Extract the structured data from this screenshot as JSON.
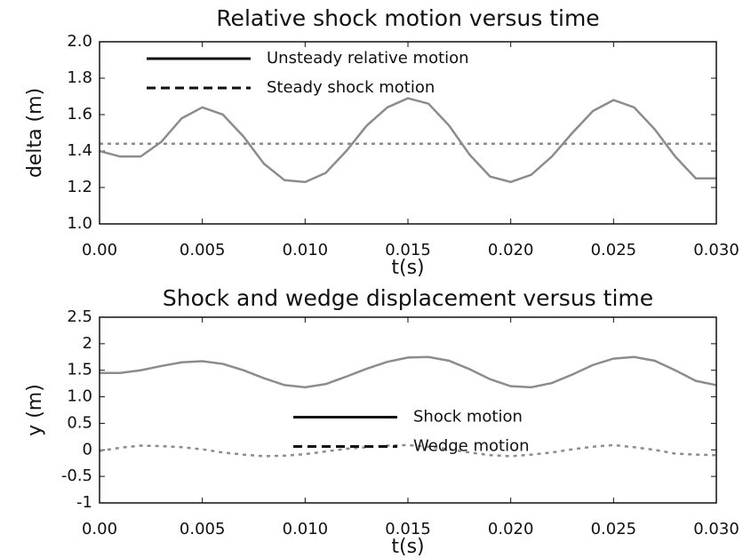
{
  "chart_data": [
    {
      "type": "line",
      "title": "Relative shock motion versus time",
      "x_label": "t(s)",
      "y_label": "delta (m)",
      "x": [
        0,
        0.001,
        0.002,
        0.003,
        0.004,
        0.005,
        0.006,
        0.007,
        0.008,
        0.009,
        0.01,
        0.011,
        0.012,
        0.013,
        0.014,
        0.015,
        0.016,
        0.017,
        0.018,
        0.019,
        0.02,
        0.021,
        0.022,
        0.023,
        0.024,
        0.025,
        0.026,
        0.027,
        0.028,
        0.029,
        0.03
      ],
      "series": [
        {
          "name": "Unsteady relative motion",
          "color": "#8c8c8c",
          "dash": false,
          "values": [
            1.4,
            1.37,
            1.37,
            1.45,
            1.58,
            1.64,
            1.6,
            1.48,
            1.33,
            1.24,
            1.23,
            1.28,
            1.4,
            1.54,
            1.64,
            1.69,
            1.66,
            1.54,
            1.38,
            1.26,
            1.23,
            1.27,
            1.37,
            1.5,
            1.62,
            1.68,
            1.64,
            1.52,
            1.37,
            1.25,
            1.25
          ]
        },
        {
          "name": "Steady shock motion",
          "color": "#8c8c8c",
          "dash": true,
          "values": [
            1.44,
            1.44,
            1.44,
            1.44,
            1.44,
            1.44,
            1.44,
            1.44,
            1.44,
            1.44,
            1.44,
            1.44,
            1.44,
            1.44,
            1.44,
            1.44,
            1.44,
            1.44,
            1.44,
            1.44,
            1.44,
            1.44,
            1.44,
            1.44,
            1.44,
            1.44,
            1.44,
            1.44,
            1.44,
            1.44,
            1.44
          ]
        }
      ],
      "xlim": [
        0,
        0.03
      ],
      "xticks": [
        {
          "value": 0,
          "label": "0.00"
        },
        0.005,
        {
          "value": 0.01,
          "label": "0.010"
        },
        0.015,
        {
          "value": 0.02,
          "label": "0.020"
        },
        0.025,
        {
          "value": 0.03,
          "label": "0.030"
        }
      ],
      "ylim": [
        1.0,
        2.0
      ],
      "yticks": [
        {
          "value": 1.0,
          "label": "1.0"
        },
        1.2,
        1.4,
        1.6,
        1.8,
        {
          "value": 2.0,
          "label": "2.0"
        }
      ],
      "legend": "upper left"
    },
    {
      "type": "line",
      "title": "Shock and wedge displacement versus time",
      "x_label": "t(s)",
      "y_label": "y (m)",
      "x": [
        0,
        0.001,
        0.002,
        0.003,
        0.004,
        0.005,
        0.006,
        0.007,
        0.008,
        0.009,
        0.01,
        0.011,
        0.012,
        0.013,
        0.014,
        0.015,
        0.016,
        0.017,
        0.018,
        0.019,
        0.02,
        0.021,
        0.022,
        0.023,
        0.024,
        0.025,
        0.026,
        0.027,
        0.028,
        0.029,
        0.03
      ],
      "series": [
        {
          "name": "Shock motion",
          "color": "#8c8c8c",
          "dash": false,
          "values": [
            1.45,
            1.45,
            1.5,
            1.58,
            1.65,
            1.67,
            1.62,
            1.5,
            1.35,
            1.22,
            1.18,
            1.24,
            1.38,
            1.53,
            1.66,
            1.74,
            1.75,
            1.68,
            1.52,
            1.33,
            1.2,
            1.18,
            1.26,
            1.42,
            1.6,
            1.72,
            1.75,
            1.68,
            1.5,
            1.3,
            1.22
          ]
        },
        {
          "name": "Wedge motion",
          "color": "#8c8c8c",
          "dash": true,
          "values": [
            -0.02,
            0.04,
            0.08,
            0.07,
            0.05,
            0.01,
            -0.05,
            -0.09,
            -0.12,
            -0.11,
            -0.08,
            -0.03,
            0.02,
            0.05,
            0.08,
            0.09,
            0.06,
            0.01,
            -0.05,
            -0.1,
            -0.12,
            -0.09,
            -0.05,
            0.01,
            0.06,
            0.09,
            0.05,
            0.0,
            -0.07,
            -0.09,
            -0.1
          ]
        }
      ],
      "xlim": [
        0,
        0.03
      ],
      "xticks": [
        {
          "value": 0,
          "label": "0.00"
        },
        0.005,
        {
          "value": 0.01,
          "label": "0.010"
        },
        0.015,
        {
          "value": 0.02,
          "label": "0.020"
        },
        0.025,
        {
          "value": 0.03,
          "label": "0.030"
        }
      ],
      "ylim": [
        -1,
        2.5
      ],
      "yticks": [
        -1,
        -0.5,
        0,
        {
          "value": 0.5,
          "label": "0.5"
        },
        {
          "value": 1,
          "label": "1.0"
        },
        1.5,
        2,
        2.5
      ],
      "legend": "center"
    }
  ]
}
